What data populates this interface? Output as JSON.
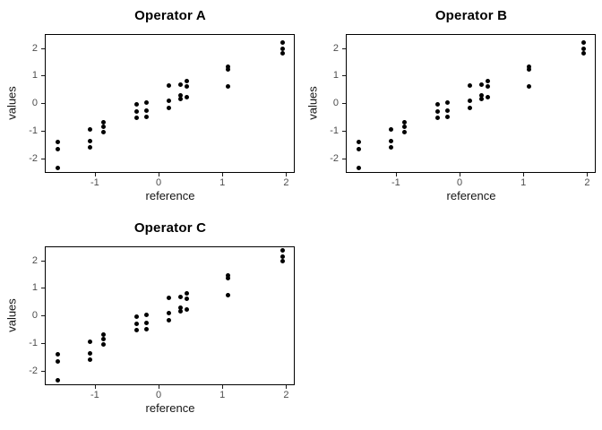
{
  "figure": {
    "background_color": "#ffffff",
    "point_color": "#000000",
    "panel_border_color": "#000000",
    "tick_label_color": "#4d4d4d",
    "axis_title_color": "#141414",
    "title_color": "#000000"
  },
  "chart_data": [
    {
      "type": "scatter",
      "title": "Operator A",
      "xlabel": "reference",
      "ylabel": "values",
      "xlim": [
        -1.77,
        2.12
      ],
      "ylim": [
        -2.48,
        2.47
      ],
      "x_ticks": [
        -1,
        0,
        1,
        2
      ],
      "y_ticks": [
        -2,
        -1,
        0,
        1,
        2
      ],
      "grid": false,
      "legend": "none",
      "x": [
        -1.58,
        -1.58,
        -1.58,
        -1.08,
        -1.08,
        -1.08,
        -0.86,
        -0.86,
        -0.86,
        -0.35,
        -0.35,
        -0.35,
        -0.19,
        -0.19,
        -0.19,
        0.16,
        0.16,
        0.16,
        0.35,
        0.35,
        0.35,
        0.44,
        0.44,
        0.44,
        1.09,
        1.09,
        1.09,
        1.94,
        1.94,
        1.94
      ],
      "y": [
        -1.4,
        -1.65,
        -2.35,
        -0.95,
        -1.37,
        -1.59,
        -0.7,
        -0.84,
        -1.05,
        -0.05,
        -0.3,
        -0.53,
        0.02,
        -0.25,
        -0.48,
        0.63,
        0.1,
        -0.18,
        0.66,
        0.28,
        0.16,
        0.8,
        0.62,
        0.22,
        1.33,
        1.23,
        0.62,
        2.2,
        1.97,
        1.82
      ]
    },
    {
      "type": "scatter",
      "title": "Operator B",
      "xlabel": "reference",
      "ylabel": "values",
      "xlim": [
        -1.77,
        2.12
      ],
      "ylim": [
        -2.48,
        2.47
      ],
      "x_ticks": [
        -1,
        0,
        1,
        2
      ],
      "y_ticks": [
        -2,
        -1,
        0,
        1,
        2
      ],
      "grid": false,
      "legend": "none",
      "x": [
        -1.58,
        -1.58,
        -1.58,
        -1.08,
        -1.08,
        -1.08,
        -0.86,
        -0.86,
        -0.86,
        -0.35,
        -0.35,
        -0.35,
        -0.19,
        -0.19,
        -0.19,
        0.16,
        0.16,
        0.16,
        0.35,
        0.35,
        0.35,
        0.44,
        0.44,
        0.44,
        1.09,
        1.09,
        1.09,
        1.94,
        1.94,
        1.94
      ],
      "y": [
        -1.4,
        -1.65,
        -2.35,
        -0.95,
        -1.37,
        -1.59,
        -0.7,
        -0.84,
        -1.05,
        -0.05,
        -0.3,
        -0.53,
        0.02,
        -0.25,
        -0.48,
        0.63,
        0.1,
        -0.18,
        0.66,
        0.28,
        0.16,
        0.8,
        0.62,
        0.22,
        1.33,
        1.23,
        0.62,
        2.2,
        1.97,
        1.82
      ]
    },
    {
      "type": "scatter",
      "title": "Operator C",
      "xlabel": "reference",
      "ylabel": "values",
      "xlim": [
        -1.77,
        2.12
      ],
      "ylim": [
        -2.48,
        2.47
      ],
      "x_ticks": [
        -1,
        0,
        1,
        2
      ],
      "y_ticks": [
        -2,
        -1,
        0,
        1,
        2
      ],
      "grid": false,
      "legend": "none",
      "x": [
        -1.58,
        -1.58,
        -1.58,
        -1.08,
        -1.08,
        -1.08,
        -0.86,
        -0.86,
        -0.86,
        -0.35,
        -0.35,
        -0.35,
        -0.19,
        -0.19,
        -0.19,
        0.16,
        0.16,
        0.16,
        0.35,
        0.35,
        0.35,
        0.44,
        0.44,
        0.44,
        1.09,
        1.09,
        1.09,
        1.94,
        1.94,
        1.94
      ],
      "y": [
        -1.4,
        -1.65,
        -2.35,
        -0.95,
        -1.37,
        -1.59,
        -0.7,
        -0.84,
        -1.05,
        -0.05,
        -0.3,
        -0.53,
        0.02,
        -0.25,
        -0.48,
        0.63,
        0.1,
        -0.18,
        0.66,
        0.28,
        0.16,
        0.8,
        0.62,
        0.22,
        1.45,
        1.35,
        0.75,
        2.35,
        2.12,
        1.98
      ]
    }
  ]
}
